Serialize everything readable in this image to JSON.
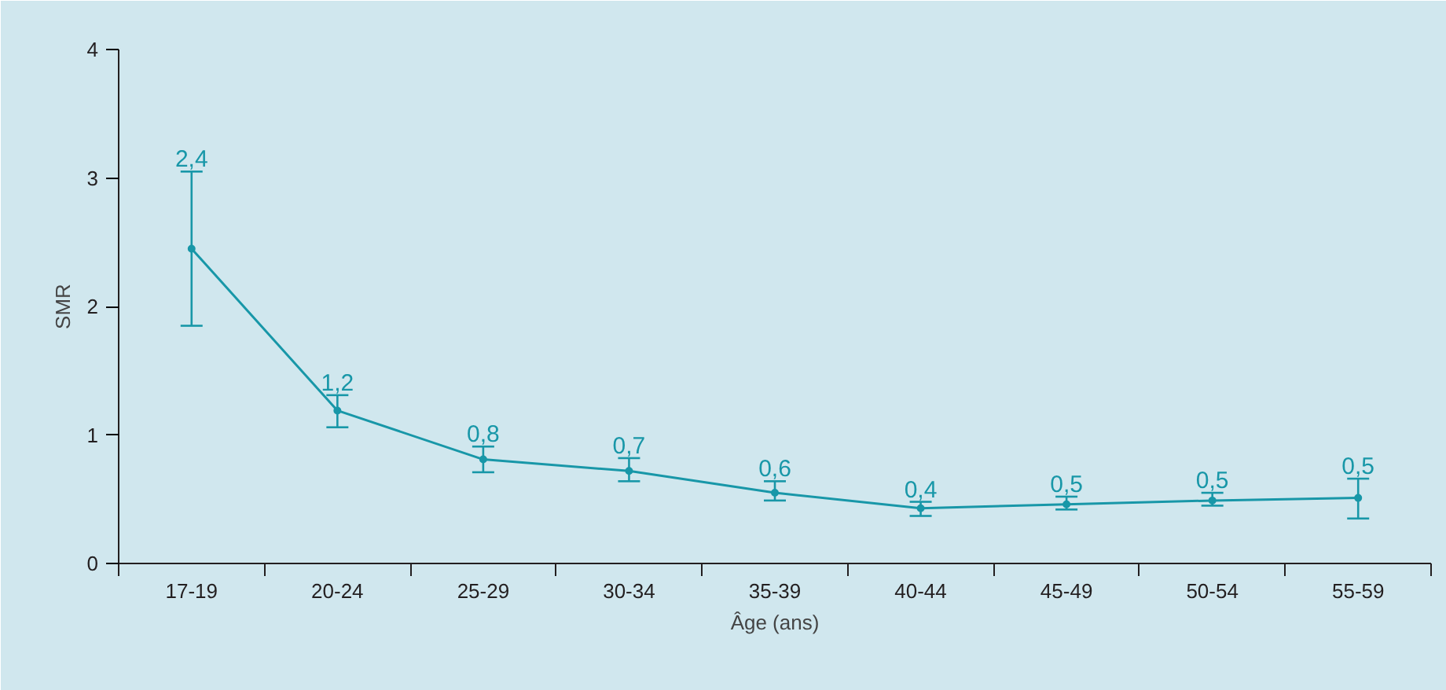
{
  "chart_data": {
    "type": "line",
    "xlabel": "Âge (ans)",
    "ylabel": "SMR",
    "categories": [
      "17-19",
      "20-24",
      "25-29",
      "30-34",
      "35-39",
      "40-44",
      "45-49",
      "50-54",
      "55-59"
    ],
    "series": [
      {
        "color": "#1897a8",
        "values": [
          2.45,
          1.19,
          0.81,
          0.72,
          0.55,
          0.43,
          0.46,
          0.49,
          0.51
        ],
        "errors": [
          [
            1.85,
            3.05
          ],
          [
            1.06,
            1.31
          ],
          [
            0.71,
            0.91
          ],
          [
            0.64,
            0.82
          ],
          [
            0.49,
            0.64
          ],
          [
            0.37,
            0.48
          ],
          [
            0.42,
            0.52
          ],
          [
            0.45,
            0.55
          ],
          [
            0.35,
            0.66
          ]
        ],
        "value_labels": [
          "2,4",
          "1,2",
          "0,8",
          "0,7",
          "0,6",
          "0,4",
          "0,5",
          "0,5",
          "0,5"
        ]
      }
    ],
    "ylim": [
      0,
      4
    ],
    "yticks": [
      0,
      1,
      2,
      3,
      4
    ],
    "marker": "circle",
    "grid": false
  }
}
